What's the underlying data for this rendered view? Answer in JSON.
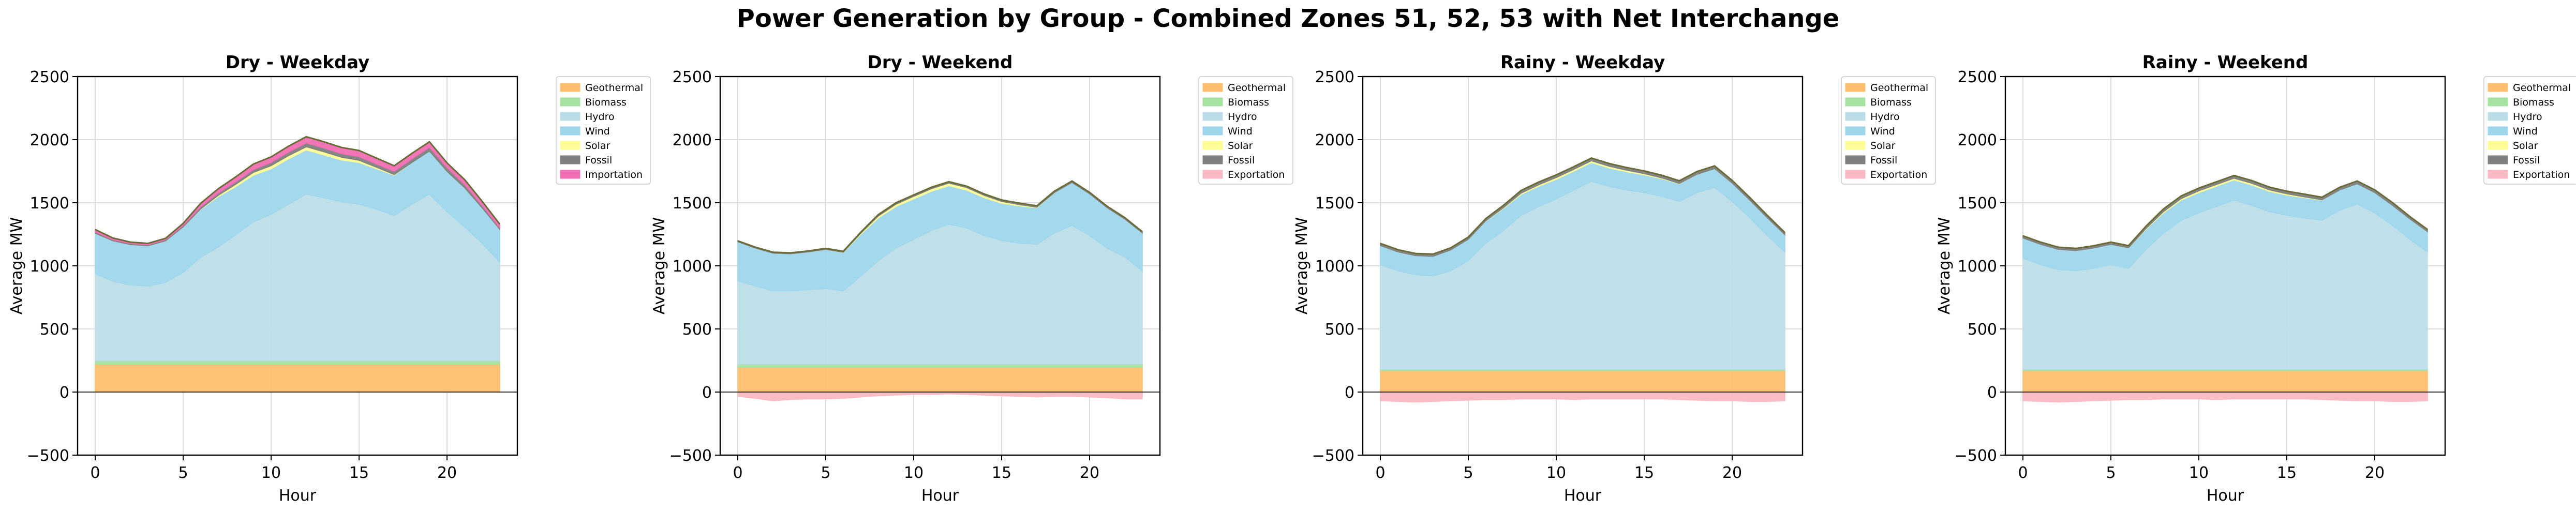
{
  "figure": {
    "title": "Power Generation by Group - Combined Zones 51, 52, 53 with Net Interchange"
  },
  "chart_data": [
    {
      "type": "area",
      "title": "Dry - Weekday",
      "xlabel": "Hour",
      "ylabel": "Average MW",
      "xlim": [
        -1,
        24
      ],
      "ylim": [
        -500,
        2500
      ],
      "x_ticks": [
        "0",
        "5",
        "10",
        "15",
        "20"
      ],
      "y_ticks": [
        "−500",
        "0",
        "500",
        "1000",
        "1500",
        "2000",
        "2500"
      ],
      "grid": true,
      "legend_position": "outside right",
      "x": [
        0,
        1,
        2,
        3,
        4,
        5,
        6,
        7,
        8,
        9,
        10,
        11,
        12,
        13,
        14,
        15,
        16,
        17,
        18,
        19,
        20,
        21,
        22,
        23
      ],
      "series": [
        {
          "name": "Geothermal",
          "color": "#fdbf6f",
          "values": [
            220,
            220,
            220,
            220,
            220,
            220,
            220,
            220,
            220,
            220,
            220,
            220,
            220,
            220,
            220,
            220,
            220,
            220,
            220,
            220,
            220,
            220,
            220,
            220
          ]
        },
        {
          "name": "Biomass",
          "color": "#a6e3a1",
          "values": [
            28,
            28,
            28,
            28,
            28,
            28,
            28,
            28,
            28,
            28,
            28,
            28,
            28,
            28,
            28,
            28,
            28,
            28,
            28,
            28,
            28,
            28,
            28,
            28
          ]
        },
        {
          "name": "Hydro",
          "color": "#bcdde8",
          "values": [
            690,
            630,
            600,
            590,
            620,
            700,
            820,
            900,
            1000,
            1100,
            1160,
            1240,
            1320,
            1290,
            1260,
            1240,
            1200,
            1150,
            1240,
            1320,
            1180,
            1060,
            930,
            780
          ]
        },
        {
          "name": "Wind",
          "color": "#9ed6ec",
          "values": [
            320,
            320,
            320,
            320,
            330,
            360,
            380,
            400,
            380,
            370,
            360,
            360,
            350,
            340,
            330,
            330,
            320,
            320,
            330,
            340,
            320,
            310,
            280,
            260
          ]
        },
        {
          "name": "Solar",
          "color": "#fdfd96",
          "values": [
            0,
            0,
            0,
            0,
            0,
            0,
            3,
            10,
            18,
            22,
            25,
            25,
            25,
            25,
            22,
            18,
            12,
            5,
            0,
            0,
            0,
            0,
            0,
            0
          ]
        },
        {
          "name": "Fossil",
          "color": "#7f7f7f",
          "values": [
            10,
            8,
            8,
            8,
            8,
            10,
            15,
            18,
            20,
            22,
            25,
            28,
            30,
            30,
            28,
            28,
            25,
            25,
            28,
            30,
            28,
            25,
            18,
            12
          ]
        },
        {
          "name": "Importation",
          "color": "#f06eb3",
          "values": [
            20,
            15,
            12,
            12,
            12,
            18,
            30,
            35,
            40,
            45,
            45,
            48,
            50,
            50,
            50,
            50,
            48,
            45,
            45,
            45,
            40,
            40,
            35,
            30
          ]
        }
      ]
    },
    {
      "type": "area",
      "title": "Dry - Weekend",
      "xlabel": "Hour",
      "ylabel": "Average MW",
      "xlim": [
        -1,
        24
      ],
      "ylim": [
        -500,
        2500
      ],
      "x_ticks": [
        "0",
        "5",
        "10",
        "15",
        "20"
      ],
      "y_ticks": [
        "−500",
        "0",
        "500",
        "1000",
        "1500",
        "2000",
        "2500"
      ],
      "grid": true,
      "legend_position": "outside right",
      "x": [
        0,
        1,
        2,
        3,
        4,
        5,
        6,
        7,
        8,
        9,
        10,
        11,
        12,
        13,
        14,
        15,
        16,
        17,
        18,
        19,
        20,
        21,
        22,
        23
      ],
      "series": [
        {
          "name": "Geothermal",
          "color": "#fdbf6f",
          "values": [
            195,
            195,
            195,
            195,
            195,
            195,
            195,
            195,
            195,
            195,
            195,
            195,
            195,
            195,
            195,
            195,
            195,
            195,
            195,
            195,
            195,
            195,
            195,
            195
          ]
        },
        {
          "name": "Biomass",
          "color": "#a6e3a1",
          "values": [
            25,
            25,
            25,
            25,
            25,
            25,
            25,
            25,
            25,
            25,
            25,
            25,
            25,
            25,
            25,
            25,
            25,
            25,
            25,
            25,
            25,
            25,
            25,
            25
          ]
        },
        {
          "name": "Hydro",
          "color": "#bcdde8",
          "values": [
            660,
            620,
            580,
            580,
            590,
            600,
            580,
            700,
            820,
            920,
            990,
            1060,
            1110,
            1080,
            1020,
            980,
            960,
            950,
            1040,
            1100,
            1020,
            920,
            850,
            740
          ]
        },
        {
          "name": "Wind",
          "color": "#9ed6ec",
          "values": [
            310,
            300,
            300,
            295,
            300,
            310,
            305,
            330,
            340,
            330,
            320,
            310,
            305,
            300,
            300,
            295,
            295,
            290,
            320,
            340,
            330,
            320,
            300,
            300
          ]
        },
        {
          "name": "Solar",
          "color": "#fdfd96",
          "values": [
            0,
            0,
            0,
            0,
            0,
            0,
            2,
            8,
            15,
            18,
            20,
            20,
            20,
            20,
            18,
            15,
            10,
            4,
            0,
            0,
            0,
            0,
            0,
            0
          ]
        },
        {
          "name": "Fossil",
          "color": "#7f7f7f",
          "values": [
            8,
            8,
            8,
            8,
            8,
            8,
            8,
            10,
            12,
            12,
            12,
            12,
            12,
            12,
            12,
            12,
            12,
            12,
            12,
            12,
            12,
            12,
            12,
            10
          ]
        },
        {
          "name": "Exportation",
          "color": "#f9b9c3",
          "values": [
            -35,
            -50,
            -70,
            -60,
            -55,
            -55,
            -50,
            -40,
            -30,
            -25,
            -20,
            -20,
            -15,
            -20,
            -25,
            -30,
            -35,
            -40,
            -35,
            -35,
            -40,
            -45,
            -55,
            -55
          ]
        }
      ]
    },
    {
      "type": "area",
      "title": "Rainy - Weekday",
      "xlabel": "Hour",
      "ylabel": "Average MW",
      "xlim": [
        -1,
        24
      ],
      "ylim": [
        -500,
        2500
      ],
      "x_ticks": [
        "0",
        "5",
        "10",
        "15",
        "20"
      ],
      "y_ticks": [
        "−500",
        "0",
        "500",
        "1000",
        "1500",
        "2000",
        "2500"
      ],
      "grid": true,
      "legend_position": "outside right",
      "x": [
        0,
        1,
        2,
        3,
        4,
        5,
        6,
        7,
        8,
        9,
        10,
        11,
        12,
        13,
        14,
        15,
        16,
        17,
        18,
        19,
        20,
        21,
        22,
        23
      ],
      "series": [
        {
          "name": "Geothermal",
          "color": "#fdbf6f",
          "values": [
            170,
            170,
            170,
            170,
            170,
            170,
            170,
            170,
            170,
            170,
            170,
            170,
            170,
            170,
            170,
            170,
            170,
            170,
            170,
            170,
            170,
            170,
            170,
            170
          ]
        },
        {
          "name": "Biomass",
          "color": "#a6e3a1",
          "values": [
            10,
            10,
            10,
            10,
            10,
            10,
            10,
            10,
            10,
            10,
            10,
            10,
            10,
            10,
            10,
            10,
            10,
            10,
            10,
            10,
            10,
            10,
            10,
            10
          ]
        },
        {
          "name": "Hydro",
          "color": "#bcdde8",
          "values": [
            830,
            780,
            750,
            740,
            780,
            860,
            1000,
            1100,
            1220,
            1290,
            1350,
            1420,
            1490,
            1450,
            1420,
            1400,
            1370,
            1330,
            1400,
            1440,
            1330,
            1200,
            1060,
            930
          ]
        },
        {
          "name": "Wind",
          "color": "#9ed6ec",
          "values": [
            150,
            150,
            150,
            155,
            165,
            170,
            175,
            175,
            165,
            160,
            155,
            150,
            148,
            145,
            145,
            140,
            140,
            140,
            145,
            150,
            145,
            140,
            140,
            135
          ]
        },
        {
          "name": "Solar",
          "color": "#fdfd96",
          "values": [
            0,
            0,
            0,
            0,
            0,
            0,
            2,
            5,
            10,
            12,
            14,
            14,
            14,
            14,
            12,
            10,
            6,
            2,
            0,
            0,
            0,
            0,
            0,
            0
          ]
        },
        {
          "name": "Fossil",
          "color": "#7f7f7f",
          "values": [
            18,
            18,
            18,
            18,
            18,
            18,
            18,
            20,
            22,
            22,
            22,
            22,
            22,
            22,
            22,
            22,
            22,
            22,
            22,
            22,
            22,
            22,
            20,
            18
          ]
        },
        {
          "name": "Exportation",
          "color": "#f9b9c3",
          "values": [
            -70,
            -75,
            -80,
            -75,
            -70,
            -65,
            -60,
            -60,
            -55,
            -55,
            -55,
            -60,
            -55,
            -55,
            -55,
            -55,
            -55,
            -60,
            -65,
            -70,
            -70,
            -75,
            -75,
            -70
          ]
        }
      ]
    },
    {
      "type": "area",
      "title": "Rainy - Weekend",
      "xlabel": "Hour",
      "ylabel": "Average MW",
      "xlim": [
        -1,
        24
      ],
      "ylim": [
        -500,
        2500
      ],
      "x_ticks": [
        "0",
        "5",
        "10",
        "15",
        "20"
      ],
      "y_ticks": [
        "−500",
        "0",
        "500",
        "1000",
        "1500",
        "2000",
        "2500"
      ],
      "grid": true,
      "legend_position": "outside right",
      "x": [
        0,
        1,
        2,
        3,
        4,
        5,
        6,
        7,
        8,
        9,
        10,
        11,
        12,
        13,
        14,
        15,
        16,
        17,
        18,
        19,
        20,
        21,
        22,
        23
      ],
      "series": [
        {
          "name": "Geothermal",
          "color": "#fdbf6f",
          "values": [
            170,
            170,
            170,
            170,
            170,
            170,
            170,
            170,
            170,
            170,
            170,
            170,
            170,
            170,
            170,
            170,
            170,
            170,
            170,
            170,
            170,
            170,
            170,
            170
          ]
        },
        {
          "name": "Biomass",
          "color": "#a6e3a1",
          "values": [
            10,
            10,
            10,
            10,
            10,
            10,
            10,
            10,
            10,
            10,
            10,
            10,
            10,
            10,
            10,
            10,
            10,
            10,
            10,
            10,
            10,
            10,
            10,
            10
          ]
        },
        {
          "name": "Hydro",
          "color": "#bcdde8",
          "values": [
            880,
            830,
            790,
            780,
            800,
            830,
            800,
            950,
            1080,
            1180,
            1240,
            1290,
            1340,
            1300,
            1250,
            1220,
            1200,
            1180,
            1260,
            1310,
            1240,
            1140,
            1030,
            930
          ]
        },
        {
          "name": "Wind",
          "color": "#9ed6ec",
          "values": [
            160,
            160,
            160,
            160,
            160,
            160,
            160,
            160,
            160,
            160,
            160,
            160,
            160,
            160,
            160,
            160,
            160,
            160,
            160,
            160,
            160,
            160,
            160,
            160
          ]
        },
        {
          "name": "Solar",
          "color": "#fdfd96",
          "values": [
            0,
            0,
            0,
            0,
            0,
            0,
            2,
            5,
            10,
            12,
            14,
            14,
            14,
            14,
            12,
            10,
            6,
            2,
            0,
            0,
            0,
            0,
            0,
            0
          ]
        },
        {
          "name": "Fossil",
          "color": "#7f7f7f",
          "values": [
            18,
            18,
            18,
            18,
            18,
            18,
            18,
            20,
            22,
            22,
            22,
            22,
            22,
            22,
            22,
            22,
            22,
            22,
            22,
            22,
            22,
            22,
            20,
            18
          ]
        },
        {
          "name": "Exportation",
          "color": "#f9b9c3",
          "values": [
            -70,
            -75,
            -80,
            -75,
            -70,
            -65,
            -60,
            -60,
            -55,
            -55,
            -55,
            -60,
            -55,
            -55,
            -55,
            -55,
            -55,
            -60,
            -65,
            -70,
            -70,
            -75,
            -75,
            -70
          ]
        }
      ]
    }
  ]
}
